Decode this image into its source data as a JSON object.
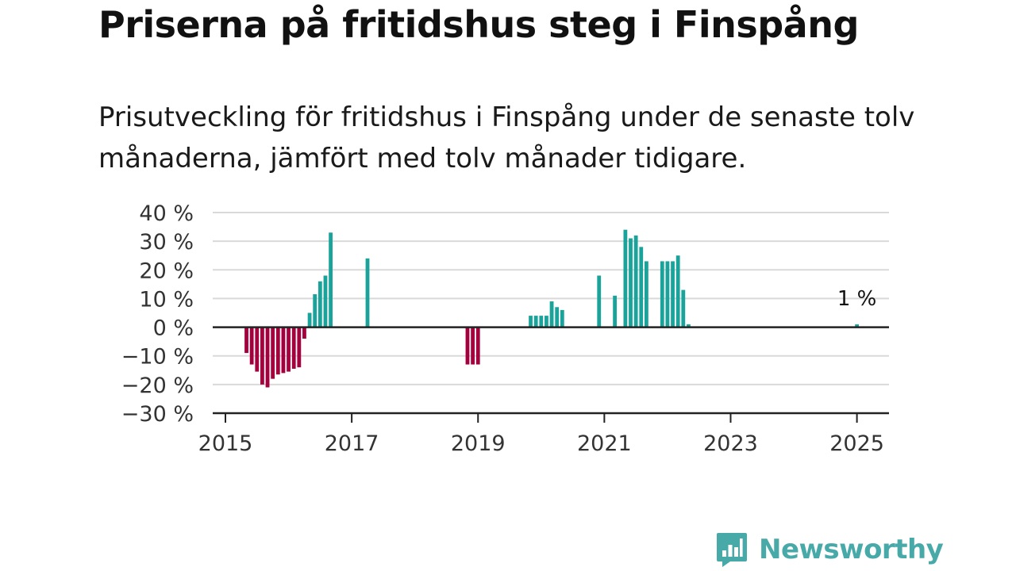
{
  "title": "Priserna på fritidshus steg i Finspång",
  "subtitle": "Prisutveckling för fritidshus i Finspång under de senaste tolv månaderna, jämfört med tolv månader tidigare.",
  "brand": {
    "name": "Newsworthy",
    "color": "#47a9a8",
    "icon": "newsworthy-logo-icon"
  },
  "colors": {
    "positive": "#1aa39a",
    "negative": "#a3003d",
    "grid": "#d9d9d9",
    "axis": "#222222"
  },
  "chart_data": {
    "type": "bar",
    "title": "Priserna på fritidshus steg i Finspång",
    "ylabel": "",
    "xlabel": "",
    "ylim": [
      -30,
      40
    ],
    "xlim": [
      "2015-01",
      "2025-08"
    ],
    "grid": true,
    "y_ticks": [
      {
        "value": 40,
        "label": "40 %"
      },
      {
        "value": 30,
        "label": "30 %"
      },
      {
        "value": 20,
        "label": "20 %"
      },
      {
        "value": 10,
        "label": "10 %"
      },
      {
        "value": 0,
        "label": "0 %"
      },
      {
        "value": -10,
        "label": "−10 %"
      },
      {
        "value": -20,
        "label": "−20 %"
      },
      {
        "value": -30,
        "label": "−30 %"
      }
    ],
    "x_ticks": [
      {
        "value": "2015-01",
        "label": "2015"
      },
      {
        "value": "2017-01",
        "label": "2017"
      },
      {
        "value": "2019-01",
        "label": "2019"
      },
      {
        "value": "2021-01",
        "label": "2021"
      },
      {
        "value": "2023-01",
        "label": "2023"
      },
      {
        "value": "2025-01",
        "label": "2025"
      }
    ],
    "series": [
      {
        "points": [
          {
            "x": "2015-05",
            "y": -9
          },
          {
            "x": "2015-06",
            "y": -13
          },
          {
            "x": "2015-07",
            "y": -15.5
          },
          {
            "x": "2015-08",
            "y": -20
          },
          {
            "x": "2015-09",
            "y": -21
          },
          {
            "x": "2015-10",
            "y": -18
          },
          {
            "x": "2015-11",
            "y": -16.5
          },
          {
            "x": "2015-12",
            "y": -16
          },
          {
            "x": "2016-01",
            "y": -15.5
          },
          {
            "x": "2016-02",
            "y": -14.5
          },
          {
            "x": "2016-03",
            "y": -14
          },
          {
            "x": "2016-04",
            "y": -4
          },
          {
            "x": "2016-05",
            "y": 5
          },
          {
            "x": "2016-06",
            "y": 11.5
          },
          {
            "x": "2016-07",
            "y": 16
          },
          {
            "x": "2016-08",
            "y": 18
          },
          {
            "x": "2016-09",
            "y": 33
          },
          {
            "x": "2017-04",
            "y": 24
          },
          {
            "x": "2018-11",
            "y": -13
          },
          {
            "x": "2018-12",
            "y": -13
          },
          {
            "x": "2019-01",
            "y": -13
          },
          {
            "x": "2019-11",
            "y": 4
          },
          {
            "x": "2019-12",
            "y": 4
          },
          {
            "x": "2020-01",
            "y": 4
          },
          {
            "x": "2020-02",
            "y": 4
          },
          {
            "x": "2020-03",
            "y": 9
          },
          {
            "x": "2020-04",
            "y": 7
          },
          {
            "x": "2020-05",
            "y": 6
          },
          {
            "x": "2020-12",
            "y": 18
          },
          {
            "x": "2021-03",
            "y": 11
          },
          {
            "x": "2021-05",
            "y": 34
          },
          {
            "x": "2021-06",
            "y": 31
          },
          {
            "x": "2021-07",
            "y": 32
          },
          {
            "x": "2021-08",
            "y": 28
          },
          {
            "x": "2021-09",
            "y": 23
          },
          {
            "x": "2021-12",
            "y": 23
          },
          {
            "x": "2022-01",
            "y": 23
          },
          {
            "x": "2022-02",
            "y": 23
          },
          {
            "x": "2022-03",
            "y": 25
          },
          {
            "x": "2022-04",
            "y": 13
          },
          {
            "x": "2022-05",
            "y": 1
          },
          {
            "x": "2025-01",
            "y": 1
          }
        ]
      }
    ],
    "annotations": [
      {
        "x": "2025-01",
        "y": 1,
        "text": "1 %"
      }
    ]
  }
}
